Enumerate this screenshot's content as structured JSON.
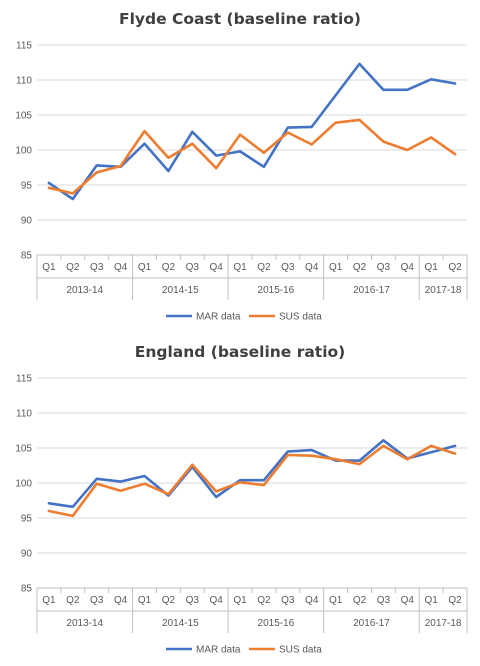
{
  "chart_data": [
    {
      "type": "line",
      "title": "Flyde Coast (baseline ratio)",
      "categories": [
        "Q1",
        "Q2",
        "Q3",
        "Q4",
        "Q1",
        "Q2",
        "Q3",
        "Q4",
        "Q1",
        "Q2",
        "Q3",
        "Q4",
        "Q1",
        "Q2",
        "Q3",
        "Q4",
        "Q1",
        "Q2"
      ],
      "groups": [
        {
          "label": "2013-14",
          "count": 4
        },
        {
          "label": "2014-15",
          "count": 4
        },
        {
          "label": "2015-16",
          "count": 4
        },
        {
          "label": "2016-17",
          "count": 4
        },
        {
          "label": "2017-18",
          "count": 2
        }
      ],
      "yticks": [
        85,
        90,
        95,
        100,
        105,
        110,
        115
      ],
      "ylim": [
        85,
        115
      ],
      "grid": true,
      "legend_position": "bottom",
      "series": [
        {
          "name": "MAR data",
          "color": "#4472c4",
          "values": [
            95.3,
            93.0,
            97.8,
            97.6,
            100.9,
            97.0,
            102.6,
            99.2,
            99.8,
            97.6,
            103.2,
            103.3,
            107.8,
            112.3,
            108.6,
            108.6,
            110.1,
            109.5
          ]
        },
        {
          "name": "SUS data",
          "color": "#ed7d31",
          "values": [
            94.6,
            93.8,
            96.8,
            97.7,
            102.7,
            98.9,
            100.9,
            97.4,
            102.2,
            99.6,
            102.5,
            100.8,
            103.9,
            104.3,
            101.2,
            100.0,
            101.8,
            99.4
          ]
        }
      ]
    },
    {
      "type": "line",
      "title": "England (baseline ratio)",
      "categories": [
        "Q1",
        "Q2",
        "Q3",
        "Q4",
        "Q1",
        "Q2",
        "Q3",
        "Q4",
        "Q1",
        "Q2",
        "Q3",
        "Q4",
        "Q1",
        "Q2",
        "Q3",
        "Q4",
        "Q1",
        "Q2"
      ],
      "groups": [
        {
          "label": "2013-14",
          "count": 4
        },
        {
          "label": "2014-15",
          "count": 4
        },
        {
          "label": "2015-16",
          "count": 4
        },
        {
          "label": "2016-17",
          "count": 4
        },
        {
          "label": "2017-18",
          "count": 2
        }
      ],
      "yticks": [
        85,
        90,
        95,
        100,
        105,
        110,
        115
      ],
      "ylim": [
        85,
        115
      ],
      "grid": true,
      "legend_position": "bottom",
      "series": [
        {
          "name": "MAR data",
          "color": "#4472c4",
          "values": [
            97.1,
            96.6,
            100.6,
            100.2,
            101.0,
            98.2,
            102.3,
            98.0,
            100.4,
            100.4,
            104.5,
            104.7,
            103.2,
            103.2,
            106.1,
            103.5,
            104.4,
            105.3
          ]
        },
        {
          "name": "SUS data",
          "color": "#ed7d31",
          "values": [
            96.0,
            95.3,
            99.9,
            98.9,
            99.9,
            98.4,
            102.6,
            98.8,
            100.1,
            99.7,
            104.0,
            103.9,
            103.4,
            102.7,
            105.3,
            103.4,
            105.3,
            104.2
          ]
        }
      ]
    }
  ]
}
